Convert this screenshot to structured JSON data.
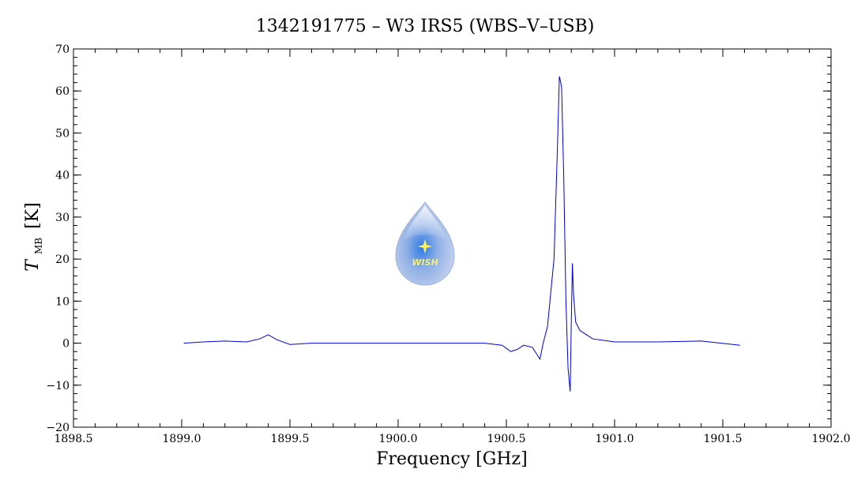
{
  "chart_data": {
    "type": "line",
    "title": "1342191775 – W3 IRS5 (WBS–V–USB)",
    "xlabel": "Frequency [GHz]",
    "ylabel_main": "T",
    "ylabel_sub": "MB",
    "ylabel_unit": "[K]",
    "xlim": [
      1898.5,
      1902.0
    ],
    "ylim": [
      -20,
      70
    ],
    "x_ticks": [
      1898.5,
      1899.0,
      1899.5,
      1900.0,
      1900.5,
      1901.0,
      1901.5,
      1902.0
    ],
    "x_tick_labels": [
      "1898.5",
      "1899.0",
      "1899.5",
      "1900.0",
      "1900.5",
      "1901.0",
      "1901.5",
      "1902.0"
    ],
    "y_ticks": [
      -20,
      -10,
      0,
      10,
      20,
      30,
      40,
      50,
      60,
      70
    ],
    "y_tick_labels": [
      "−20",
      "−10",
      "0",
      "10",
      "20",
      "30",
      "40",
      "50",
      "60",
      "70"
    ],
    "grid": false,
    "legend": "none",
    "logo_text": "WISH",
    "colors": {
      "series": "#0000cc",
      "axes": "#000000"
    },
    "series": [
      {
        "x": [
          1899.01,
          1899.1,
          1899.2,
          1899.3,
          1899.36,
          1899.4,
          1899.44,
          1899.5,
          1899.6,
          1899.8,
          1900.0,
          1900.2,
          1900.4,
          1900.48,
          1900.52,
          1900.55,
          1900.58,
          1900.62,
          1900.655,
          1900.67,
          1900.69,
          1900.72,
          1900.735,
          1900.745,
          1900.755,
          1900.765,
          1900.775,
          1900.785,
          1900.795,
          1900.8,
          1900.805,
          1900.81,
          1900.82,
          1900.84,
          1900.87,
          1900.9,
          1901.0,
          1901.2,
          1901.4,
          1901.58
        ],
        "values": [
          0,
          0.3,
          0.5,
          0.3,
          1.0,
          2.0,
          0.8,
          -0.3,
          0,
          0,
          0,
          0,
          0,
          -0.5,
          -2.0,
          -1.5,
          -0.5,
          -1.0,
          -3.8,
          0,
          4.0,
          20,
          45,
          63.5,
          61,
          40,
          10,
          -6,
          -11.5,
          5,
          19,
          12,
          5,
          3,
          2,
          1,
          0.3,
          0.3,
          0.5,
          -0.5
        ]
      }
    ]
  }
}
